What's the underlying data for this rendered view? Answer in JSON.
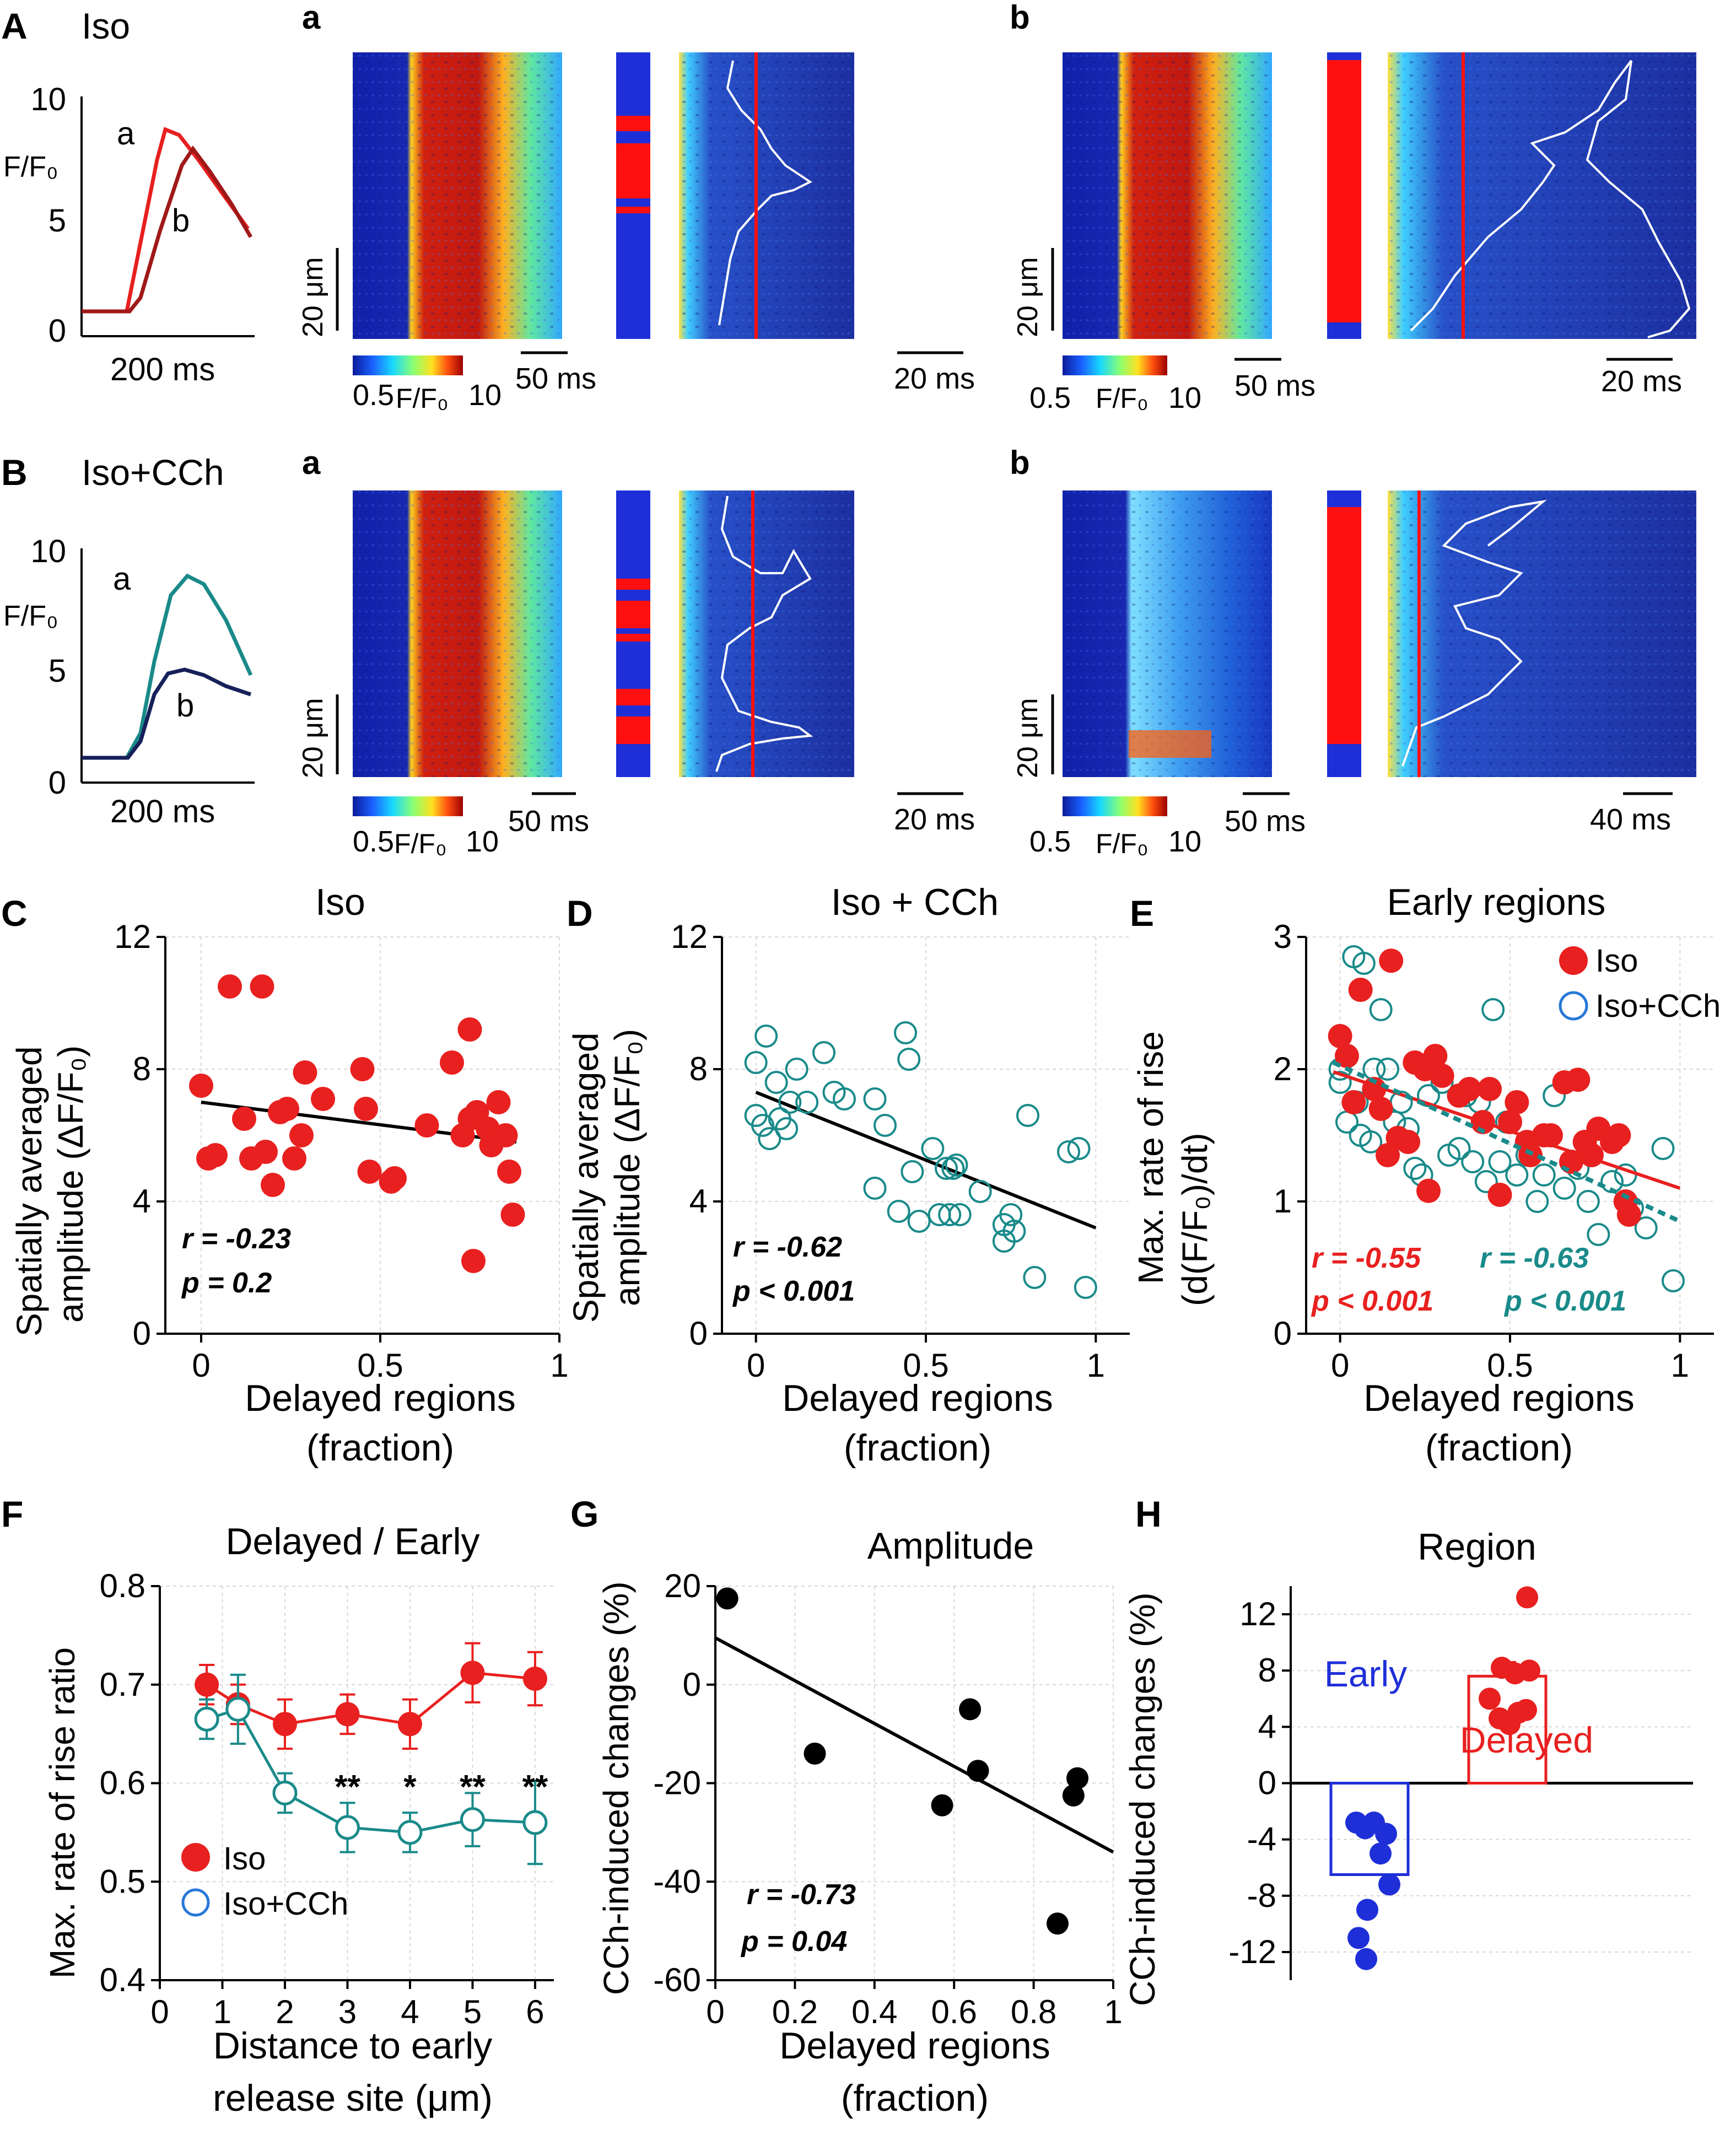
{
  "colors": {
    "iso": "#e8201f",
    "cch": "#1a8a8a",
    "cch_dark": "#16205a",
    "iso_dark": "#a01818",
    "early": "#1e2fd8",
    "black": "#000000",
    "heat_bg": "#1c2fa0"
  },
  "panel_letters": {
    "A": "A",
    "B": "B",
    "C": "C",
    "D": "D",
    "E": "E",
    "F": "F",
    "G": "G",
    "H": "H",
    "a": "a",
    "b": "b"
  },
  "rowA": {
    "condition": "Iso",
    "trace": {
      "ytick_10": "10",
      "ytick_5": "5",
      "ytick_0": "0",
      "ylabel": "F/F₀",
      "label_a": "a",
      "label_b": "b",
      "scale": "200 ms"
    },
    "colorbar": {
      "min": "0.5",
      "mid": "F/F₀",
      "max": "10"
    },
    "scale_um": "20 μm",
    "a_scale_time": "50 ms",
    "a_zoom_time": "20 ms",
    "b_scale_time": "50 ms",
    "b_zoom_time": "20 ms"
  },
  "rowB": {
    "condition": "Iso+CCh",
    "trace": {
      "ytick_10": "10",
      "ytick_5": "5",
      "ytick_0": "0",
      "ylabel": "F/F₀",
      "label_a": "a",
      "label_b": "b",
      "scale": "200 ms"
    },
    "colorbar": {
      "min": "0.5",
      "mid": "F/F₀",
      "max": "10"
    },
    "scale_um": "20 μm",
    "a_scale_time": "50 ms",
    "a_zoom_time": "20 ms",
    "b_scale_time": "50 ms",
    "b_zoom_time": "40 ms"
  },
  "chart_data": [
    {
      "id": "C",
      "type": "scatter",
      "title": "Iso",
      "ylabel": "Spatially averaged amplitude (ΔF/F₀)",
      "xlabel": "Delayed regions (fraction)",
      "xlim": [
        -0.1,
        1.0
      ],
      "ylim": [
        0,
        12
      ],
      "xticks": [
        "0",
        "0.5",
        "1"
      ],
      "yticks": [
        "0",
        "4",
        "8",
        "12"
      ],
      "stat_r": "r = -0.23",
      "stat_p": "p = 0.2",
      "fit": [
        [
          0,
          7.0
        ],
        [
          0.88,
          5.8
        ]
      ],
      "points": [
        [
          0.0,
          7.5
        ],
        [
          0.02,
          5.3
        ],
        [
          0.04,
          5.4
        ],
        [
          0.08,
          10.5
        ],
        [
          0.12,
          6.5
        ],
        [
          0.14,
          5.3
        ],
        [
          0.17,
          10.5
        ],
        [
          0.18,
          5.5
        ],
        [
          0.2,
          4.5
        ],
        [
          0.22,
          6.7
        ],
        [
          0.24,
          6.8
        ],
        [
          0.26,
          5.3
        ],
        [
          0.28,
          6.0
        ],
        [
          0.29,
          7.9
        ],
        [
          0.34,
          7.1
        ],
        [
          0.45,
          8.0
        ],
        [
          0.46,
          6.8
        ],
        [
          0.47,
          4.9
        ],
        [
          0.53,
          4.6
        ],
        [
          0.54,
          4.7
        ],
        [
          0.63,
          6.3
        ],
        [
          0.7,
          8.2
        ],
        [
          0.73,
          6.0
        ],
        [
          0.75,
          9.2
        ],
        [
          0.75,
          6.5
        ],
        [
          0.76,
          2.2
        ],
        [
          0.77,
          6.7
        ],
        [
          0.8,
          6.2
        ],
        [
          0.81,
          5.7
        ],
        [
          0.83,
          7.0
        ],
        [
          0.85,
          6.0
        ],
        [
          0.86,
          4.9
        ],
        [
          0.87,
          3.6
        ]
      ]
    },
    {
      "id": "D",
      "type": "scatter",
      "title": "Iso + CCh",
      "ylabel": "Spatially averaged amplitude (ΔF/F₀)",
      "xlabel": "Delayed regions (fraction)",
      "xlim": [
        -0.1,
        1.1
      ],
      "ylim": [
        0,
        12
      ],
      "xticks": [
        "0",
        "0.5",
        "1"
      ],
      "yticks": [
        "0",
        "4",
        "8",
        "12"
      ],
      "stat_r": "r = -0.62",
      "stat_p": "p < 0.001",
      "fit": [
        [
          0,
          7.3
        ],
        [
          1.0,
          3.2
        ]
      ],
      "points": [
        [
          0.0,
          8.2
        ],
        [
          0.0,
          6.6
        ],
        [
          0.02,
          6.3
        ],
        [
          0.03,
          9.0
        ],
        [
          0.04,
          5.9
        ],
        [
          0.06,
          7.6
        ],
        [
          0.07,
          6.5
        ],
        [
          0.09,
          6.2
        ],
        [
          0.1,
          7.0
        ],
        [
          0.12,
          8.0
        ],
        [
          0.15,
          7.0
        ],
        [
          0.2,
          8.5
        ],
        [
          0.23,
          7.3
        ],
        [
          0.26,
          7.1
        ],
        [
          0.35,
          7.1
        ],
        [
          0.35,
          4.4
        ],
        [
          0.38,
          6.3
        ],
        [
          0.42,
          3.7
        ],
        [
          0.44,
          9.1
        ],
        [
          0.45,
          8.3
        ],
        [
          0.46,
          4.9
        ],
        [
          0.48,
          3.4
        ],
        [
          0.52,
          5.6
        ],
        [
          0.54,
          3.6
        ],
        [
          0.56,
          5.0
        ],
        [
          0.57,
          3.6
        ],
        [
          0.58,
          5.0
        ],
        [
          0.59,
          5.1
        ],
        [
          0.6,
          3.6
        ],
        [
          0.66,
          4.3
        ],
        [
          0.73,
          3.3
        ],
        [
          0.73,
          2.8
        ],
        [
          0.75,
          3.6
        ],
        [
          0.76,
          3.1
        ],
        [
          0.8,
          6.6
        ],
        [
          0.82,
          1.7
        ],
        [
          0.92,
          5.5
        ],
        [
          0.95,
          5.6
        ],
        [
          0.97,
          1.4
        ]
      ]
    },
    {
      "id": "E",
      "type": "scatter",
      "title": "Early regions",
      "ylabel": "Max. rate of rise (d(F/F₀)/dt)",
      "xlabel": "Delayed regions (fraction)",
      "xlim": [
        -0.1,
        1.1
      ],
      "ylim": [
        0,
        3
      ],
      "xticks": [
        "0",
        "0.5",
        "1"
      ],
      "yticks": [
        "0",
        "1",
        "2",
        "3"
      ],
      "legend": [
        "Iso",
        "Iso+CCh"
      ],
      "stat_iso_r": "r = -0.55",
      "stat_iso_p": "p < 0.001",
      "stat_cch_r": "r = -0.63",
      "stat_cch_p": "p < 0.001",
      "fit_iso": [
        [
          -0.02,
          1.98
        ],
        [
          1.0,
          1.1
        ]
      ],
      "fit_cch": [
        [
          -0.02,
          2.05
        ],
        [
          1.0,
          0.85
        ]
      ],
      "points_iso": [
        [
          0.0,
          2.25
        ],
        [
          0.02,
          2.1
        ],
        [
          0.04,
          1.75
        ],
        [
          0.06,
          2.6
        ],
        [
          0.1,
          1.85
        ],
        [
          0.12,
          1.7
        ],
        [
          0.14,
          1.35
        ],
        [
          0.15,
          2.82
        ],
        [
          0.17,
          1.48
        ],
        [
          0.2,
          1.45
        ],
        [
          0.22,
          2.05
        ],
        [
          0.25,
          2.0
        ],
        [
          0.26,
          1.08
        ],
        [
          0.28,
          2.1
        ],
        [
          0.3,
          1.95
        ],
        [
          0.35,
          1.8
        ],
        [
          0.38,
          1.85
        ],
        [
          0.42,
          1.6
        ],
        [
          0.44,
          1.85
        ],
        [
          0.47,
          1.05
        ],
        [
          0.5,
          1.6
        ],
        [
          0.52,
          1.75
        ],
        [
          0.55,
          1.45
        ],
        [
          0.56,
          1.35
        ],
        [
          0.6,
          1.5
        ],
        [
          0.62,
          1.5
        ],
        [
          0.66,
          1.9
        ],
        [
          0.68,
          1.3
        ],
        [
          0.7,
          1.92
        ],
        [
          0.72,
          1.45
        ],
        [
          0.74,
          1.35
        ],
        [
          0.76,
          1.55
        ],
        [
          0.8,
          1.45
        ],
        [
          0.82,
          1.5
        ],
        [
          0.84,
          1.0
        ],
        [
          0.85,
          0.9
        ]
      ],
      "points_cch": [
        [
          0.0,
          2.0
        ],
        [
          0.0,
          1.9
        ],
        [
          0.02,
          1.6
        ],
        [
          0.04,
          2.85
        ],
        [
          0.05,
          1.75
        ],
        [
          0.06,
          1.5
        ],
        [
          0.07,
          2.8
        ],
        [
          0.09,
          1.45
        ],
        [
          0.1,
          2.0
        ],
        [
          0.12,
          2.45
        ],
        [
          0.14,
          2.0
        ],
        [
          0.16,
          1.6
        ],
        [
          0.18,
          1.75
        ],
        [
          0.2,
          1.55
        ],
        [
          0.22,
          1.25
        ],
        [
          0.24,
          1.2
        ],
        [
          0.26,
          1.8
        ],
        [
          0.3,
          1.9
        ],
        [
          0.32,
          1.35
        ],
        [
          0.35,
          1.4
        ],
        [
          0.37,
          1.8
        ],
        [
          0.39,
          1.3
        ],
        [
          0.41,
          1.75
        ],
        [
          0.43,
          1.15
        ],
        [
          0.45,
          2.45
        ],
        [
          0.47,
          1.3
        ],
        [
          0.49,
          1.6
        ],
        [
          0.52,
          1.2
        ],
        [
          0.55,
          1.35
        ],
        [
          0.58,
          1.0
        ],
        [
          0.6,
          1.2
        ],
        [
          0.63,
          1.8
        ],
        [
          0.66,
          1.1
        ],
        [
          0.7,
          1.25
        ],
        [
          0.73,
          1.0
        ],
        [
          0.76,
          0.75
        ],
        [
          0.8,
          1.15
        ],
        [
          0.84,
          1.2
        ],
        [
          0.86,
          0.95
        ],
        [
          0.9,
          0.8
        ],
        [
          0.95,
          1.4
        ],
        [
          0.98,
          0.4
        ]
      ]
    },
    {
      "id": "F",
      "type": "line",
      "title": "Delayed / Early",
      "ylabel": "Max. rate of rise ratio",
      "xlabel": "Distance to early release site (μm)",
      "xlim": [
        0,
        6.3
      ],
      "ylim": [
        0.4,
        0.8
      ],
      "xticks": [
        "0",
        "1",
        "2",
        "3",
        "4",
        "5",
        "6"
      ],
      "yticks": [
        "0.4",
        "0.5",
        "0.6",
        "0.7",
        "0.8"
      ],
      "legend": [
        "Iso",
        "Iso+CCh"
      ],
      "series": [
        {
          "name": "Iso",
          "x": [
            0.75,
            1.25,
            2,
            3,
            4,
            5,
            6
          ],
          "y": [
            0.7,
            0.68,
            0.66,
            0.67,
            0.66,
            0.712,
            0.706
          ],
          "err": [
            0.02,
            0.02,
            0.025,
            0.02,
            0.025,
            0.03,
            0.027
          ]
        },
        {
          "name": "Iso+CCh",
          "x": [
            0.75,
            1.25,
            2,
            3,
            4,
            5,
            6
          ],
          "y": [
            0.665,
            0.675,
            0.59,
            0.555,
            0.55,
            0.563,
            0.56
          ],
          "err": [
            0.02,
            0.035,
            0.02,
            0.025,
            0.02,
            0.027,
            0.042
          ]
        }
      ],
      "sig": [
        {
          "x": 3,
          "label": "**"
        },
        {
          "x": 4,
          "label": "*"
        },
        {
          "x": 5,
          "label": "**"
        },
        {
          "x": 6,
          "label": "**"
        }
      ]
    },
    {
      "id": "G",
      "type": "scatter",
      "title": "Amplitude",
      "ylabel": "CCh-induced changes (%)",
      "xlabel": "Delayed regions (fraction)",
      "xlim": [
        0,
        1
      ],
      "ylim": [
        -60,
        20
      ],
      "xticks": [
        "0",
        "0.2",
        "0.4",
        "0.6",
        "0.8",
        "1"
      ],
      "yticks": [
        "-60",
        "-40",
        "-20",
        "0",
        "20"
      ],
      "stat_r": "r = -0.73",
      "stat_p": "p = 0.04",
      "fit": [
        [
          0,
          9.5
        ],
        [
          1.0,
          -34
        ]
      ],
      "points": [
        [
          0.03,
          17.5
        ],
        [
          0.25,
          -14
        ],
        [
          0.57,
          -24.5
        ],
        [
          0.64,
          -5
        ],
        [
          0.66,
          -17.5
        ],
        [
          0.86,
          -48.5
        ],
        [
          0.9,
          -22.5
        ],
        [
          0.91,
          -19
        ]
      ]
    },
    {
      "id": "H",
      "type": "bar",
      "title": "Region",
      "ylabel": "CCh-induced changes (%)",
      "categories": [
        "Early",
        "Delayed"
      ],
      "values": [
        -6.5,
        7.6
      ],
      "sem": [
        0,
        1.0
      ],
      "ylim": [
        -14,
        14
      ],
      "yticks": [
        "-12",
        "-8",
        "-4",
        "0",
        "4",
        "8",
        "12"
      ],
      "points_early": [
        -2.8,
        -2.8,
        -3.6,
        -3.2,
        -5.0,
        -7.2,
        -9.0,
        -11.0,
        -12.5
      ],
      "points_delayed": [
        13.2,
        8.2,
        8.0,
        7.8,
        6.0,
        5.0,
        4.6,
        4.2,
        5.2
      ]
    }
  ]
}
